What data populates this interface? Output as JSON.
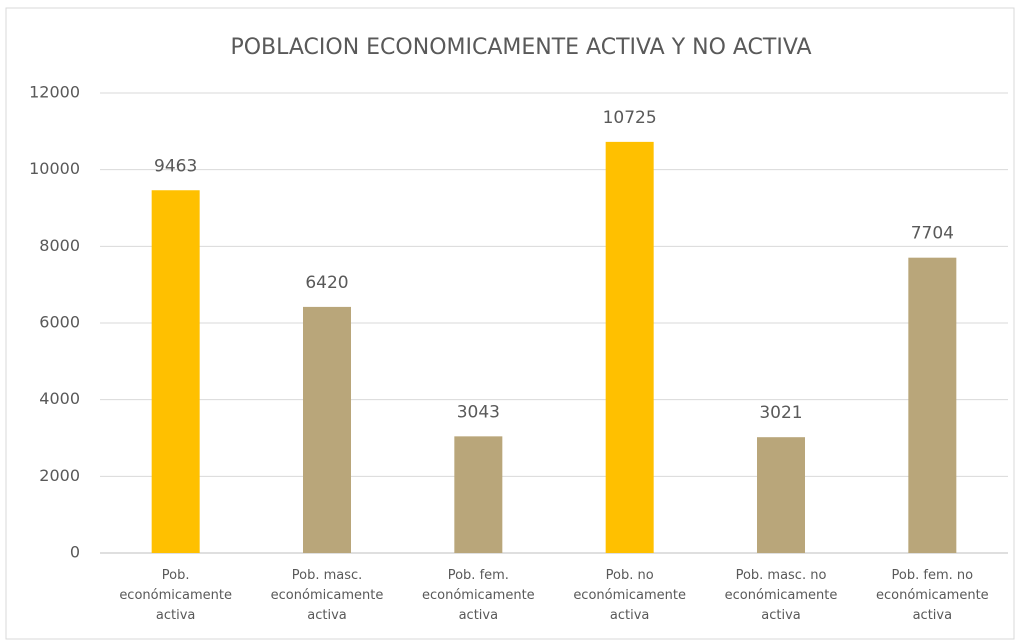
{
  "chart_data": {
    "type": "bar",
    "title": "POBLACION ECONOMICAMENTE ACTIVA Y NO ACTIVA",
    "categories": [
      "Pob. económicamente activa",
      "Pob. masc. económicamente activa",
      "Pob. fem. económicamente activa",
      "Pob. no económicamente activa",
      "Pob. masc. no económicamente activa",
      "Pob. fem. no económicamente activa"
    ],
    "values": [
      9463,
      6420,
      3043,
      10725,
      3021,
      7704
    ],
    "colors": [
      "#ffc000",
      "#b9a67a",
      "#b9a67a",
      "#ffc000",
      "#b9a67a",
      "#b9a67a"
    ],
    "ylim": [
      0,
      12000
    ],
    "yticks": [
      0,
      2000,
      4000,
      6000,
      8000,
      10000,
      12000
    ],
    "grid": true
  }
}
